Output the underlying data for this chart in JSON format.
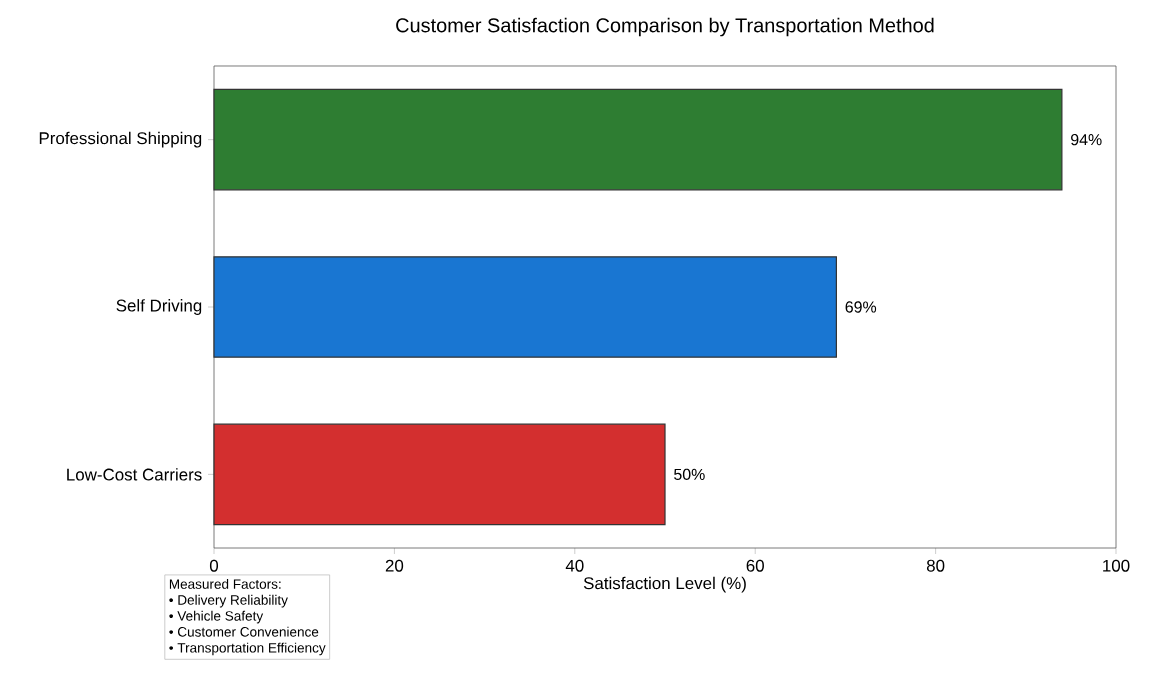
{
  "chart_data": {
    "type": "bar",
    "orientation": "horizontal",
    "title": "Customer Satisfaction Comparison by Transportation Method",
    "xlabel": "Satisfaction Level (%)",
    "categories": [
      "Professional Shipping",
      "Self Driving",
      "Low-Cost Carriers"
    ],
    "values": [
      94,
      69,
      50
    ],
    "colors": [
      "#2e7d32",
      "#1976d2",
      "#d32f2f"
    ],
    "value_labels": [
      "94%",
      "69%",
      "50%"
    ],
    "xlim": [
      0,
      100
    ],
    "xticks": [
      0,
      20,
      40,
      60,
      80,
      100
    ],
    "annotations": [
      "Measured Factors:",
      "• Delivery Reliability",
      "• Vehicle Safety",
      "• Customer Convenience",
      "• Transportation Efficiency"
    ]
  }
}
